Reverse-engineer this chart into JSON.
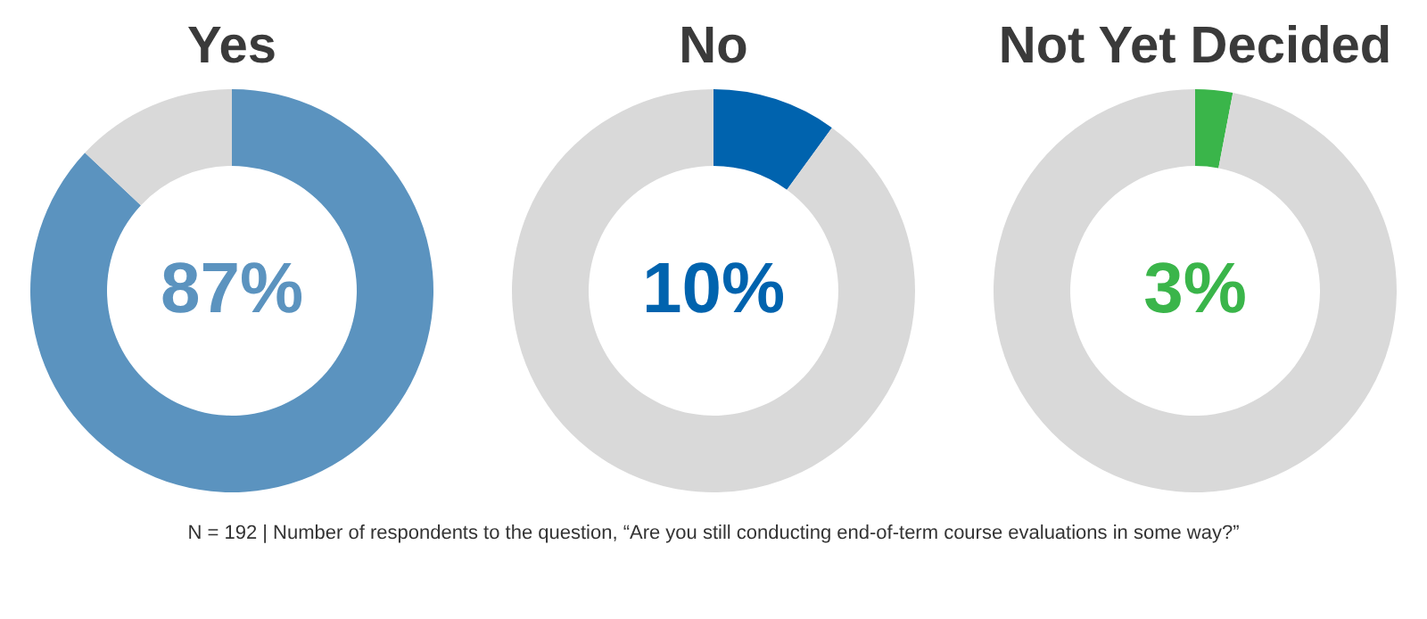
{
  "chart_data": [
    {
      "type": "donut",
      "title": "Yes",
      "categories": [
        null,
        null
      ],
      "values": [
        87,
        13
      ],
      "colors": [
        "#5b93bf",
        "#d9d9d9"
      ],
      "value_labels": [
        "87%",
        null
      ],
      "annotations": [
        "N = 192 | Number of respondents to the question, “Are you still conducting end-of-term course evaluations in some way?”"
      ]
    },
    {
      "type": "donut",
      "title": "No",
      "categories": [
        null,
        null
      ],
      "values": [
        10,
        90
      ],
      "colors": [
        "#0063ae",
        "#d9d9d9"
      ],
      "value_labels": [
        "10%",
        null
      ]
    },
    {
      "type": "donut",
      "title": "Not Yet Decided",
      "categories": [
        null,
        null
      ],
      "values": [
        3,
        97
      ],
      "colors": [
        "#3ab54a",
        "#d9d9d9"
      ],
      "value_labels": [
        "3%",
        null
      ]
    }
  ]
}
